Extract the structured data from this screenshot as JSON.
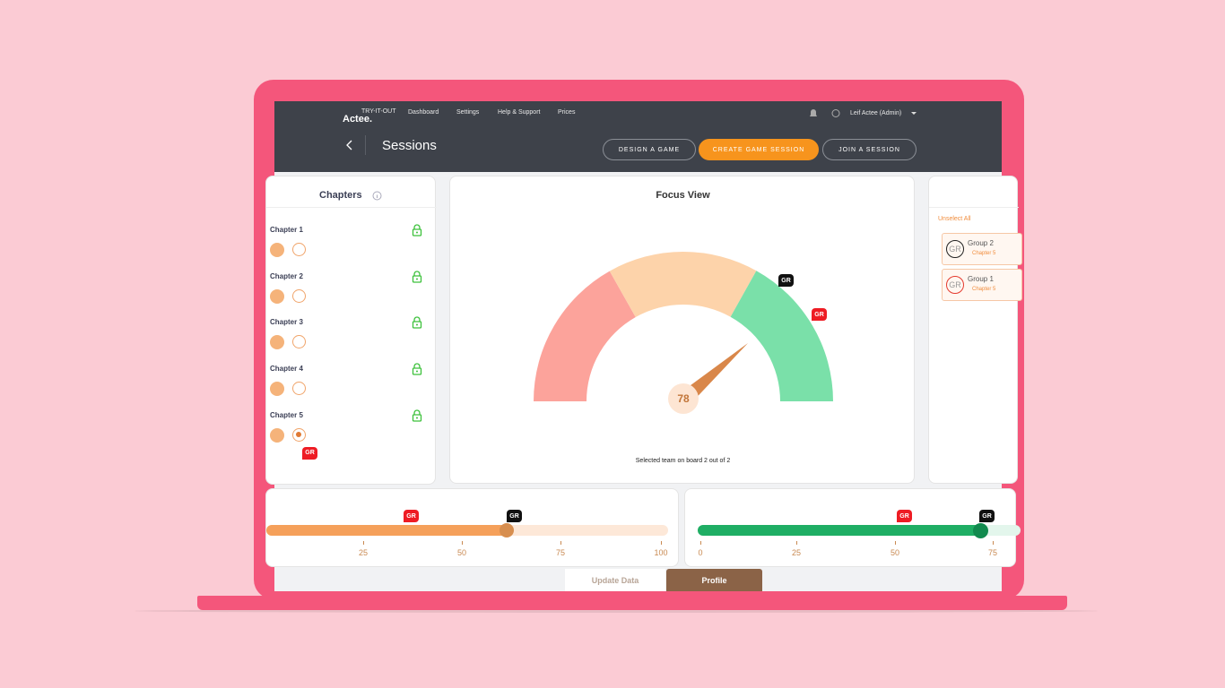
{
  "nav": {
    "tagline": "TRY-IT-OUT",
    "brand": "Actee.",
    "links": [
      "Dashboard",
      "Settings",
      "Help & Support",
      "Prices"
    ],
    "user": "Leif Actee (Admin)"
  },
  "header": {
    "title": "Sessions",
    "buttons": [
      "DESIGN A GAME",
      "CREATE GAME SESSION",
      "JOIN A SESSION"
    ]
  },
  "chapters": {
    "title": "Chapters",
    "items": [
      {
        "label": "Chapter 1"
      },
      {
        "label": "Chapter 2"
      },
      {
        "label": "Chapter 3"
      },
      {
        "label": "Chapter 4"
      },
      {
        "label": "Chapter 5",
        "badge": "GR"
      }
    ]
  },
  "focus": {
    "title": "Focus View",
    "score": "78",
    "badges": [
      "GR",
      "GR"
    ],
    "caption": "Selected team on board 2 out of 2"
  },
  "groups": {
    "action": "Unselect All",
    "items": [
      {
        "avatar": "GR",
        "name": "Group 2",
        "chapter": "Chapter 5"
      },
      {
        "avatar": "GR",
        "name": "Group 1",
        "chapter": "Chapter 5"
      }
    ]
  },
  "sliders": [
    {
      "badges": [
        "GR",
        "GR"
      ],
      "ticks": [
        "25",
        "50",
        "75",
        "100"
      ]
    },
    {
      "badges": [
        "GR",
        "GR"
      ],
      "ticks": [
        "0",
        "25",
        "50",
        "75"
      ]
    }
  ],
  "tabs": [
    "Update Data",
    "Profile"
  ]
}
